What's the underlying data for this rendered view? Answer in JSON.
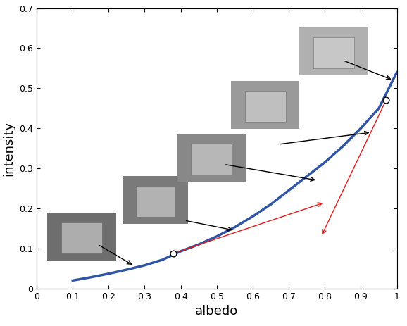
{
  "chart_data": {
    "type": "line",
    "x_label": "albedo",
    "y_label": "intensity",
    "xlim": [
      0,
      1
    ],
    "ylim": [
      0,
      0.7
    ],
    "xticks": [
      0,
      0.1,
      0.2,
      0.3,
      0.4,
      0.5,
      0.6,
      0.7,
      0.8,
      0.9,
      1
    ],
    "yticks": [
      0,
      0.1,
      0.2,
      0.3,
      0.4,
      0.5,
      0.6,
      0.7
    ],
    "series": [
      {
        "type": "line",
        "color": "#2f55a4",
        "x": [
          0.1,
          0.15,
          0.2,
          0.25,
          0.3,
          0.35,
          0.4,
          0.45,
          0.5,
          0.55,
          0.6,
          0.65,
          0.7,
          0.75,
          0.8,
          0.85,
          0.9,
          0.95,
          1.0
        ],
        "values": [
          0.02,
          0.028,
          0.037,
          0.047,
          0.058,
          0.072,
          0.093,
          0.11,
          0.13,
          0.153,
          0.18,
          0.21,
          0.245,
          0.28,
          0.315,
          0.355,
          0.4,
          0.45,
          0.54
        ]
      },
      {
        "type": "scatter",
        "marker": "o",
        "color": "#000000",
        "x": [
          0.38,
          0.97
        ],
        "values": [
          0.088,
          0.47
        ]
      }
    ],
    "arrows": [
      {
        "color": "#e31a1c",
        "from": [
          0.38,
          0.088
        ],
        "to": [
          0.8,
          0.215
        ]
      },
      {
        "color": "#e31a1c",
        "from": [
          0.97,
          0.47
        ],
        "to": [
          0.79,
          0.13
        ]
      }
    ],
    "image_pointers": [
      {
        "x": 0.27,
        "y": 0.057
      },
      {
        "x": 0.55,
        "y": 0.145
      },
      {
        "x": 0.78,
        "y": 0.27
      },
      {
        "x": 0.93,
        "y": 0.39
      },
      {
        "x": 0.99,
        "y": 0.52
      }
    ]
  }
}
